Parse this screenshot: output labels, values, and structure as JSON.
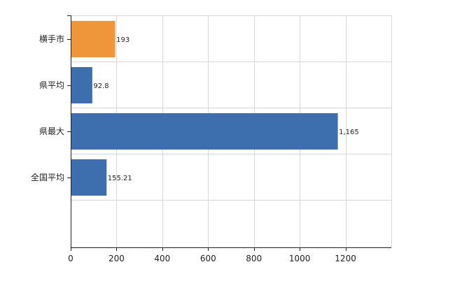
{
  "chart_data": {
    "type": "bar",
    "orientation": "horizontal",
    "categories": [
      "横手市",
      "県平均",
      "県最大",
      "全国平均"
    ],
    "values": [
      193,
      92.8,
      1165,
      155.21
    ],
    "value_labels": [
      "193",
      "92.8",
      "1,165",
      "155.21"
    ],
    "bar_colors": [
      "#f0963a",
      "#3d6fae",
      "#3d6fae",
      "#3d6fae"
    ],
    "xlim": [
      0,
      1400
    ],
    "x_ticks": [
      0,
      200,
      400,
      600,
      800,
      1000,
      1200
    ],
    "x_tick_labels": [
      "0",
      "200",
      "400",
      "600",
      "800",
      "1000",
      "1200"
    ],
    "grid": true,
    "legend": "none",
    "title": "",
    "xlabel": "",
    "ylabel": ""
  }
}
